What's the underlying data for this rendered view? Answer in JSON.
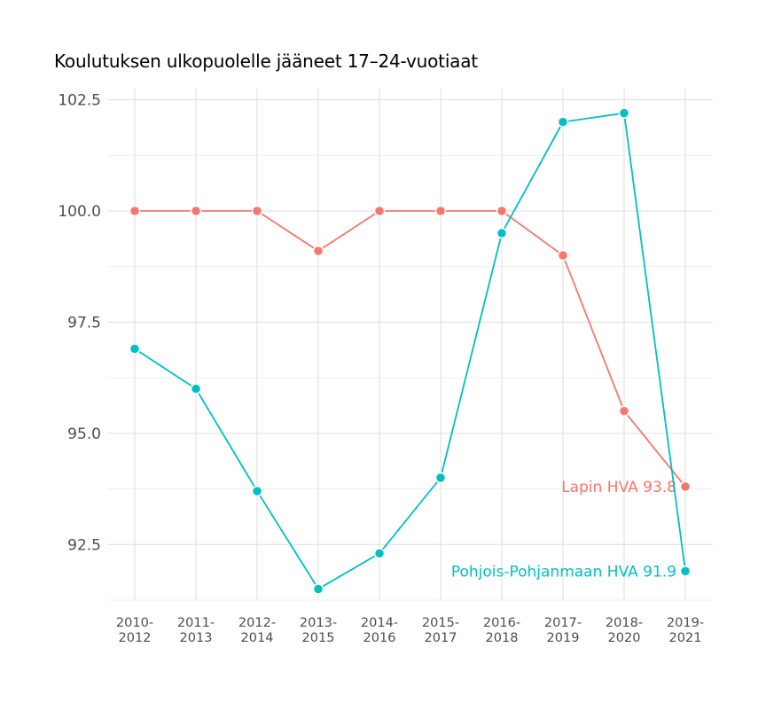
{
  "chart_data": {
    "type": "line",
    "title": "Koulutuksen ulkopuolelle jääneet 17–24-vuotiaat",
    "xlabel": "",
    "ylabel": "",
    "categories": [
      "2010-2012",
      "2011-2013",
      "2012-2014",
      "2013-2015",
      "2014-2016",
      "2015-2017",
      "2016-2018",
      "2017-2019",
      "2018-2020",
      "2019-2021"
    ],
    "ylim": [
      91.25,
      102.75
    ],
    "yticks": [
      "92.5",
      "95.0",
      "97.5",
      "100.0",
      "102.5"
    ],
    "grid": true,
    "legend": "none (direct end labels)",
    "series": [
      {
        "name": "Lapin HVA",
        "color": "#F8766D",
        "end_label": "Lapin HVA 93.8",
        "values": [
          100.0,
          100.0,
          100.0,
          99.1,
          100.0,
          100.0,
          100.0,
          99.0,
          95.5,
          93.8
        ]
      },
      {
        "name": "Pohjois-Pohjanmaan HVA",
        "color": "#00BFC4",
        "end_label": "Pohjois-Pohjanmaan HVA 91.9",
        "values": [
          96.9,
          96.0,
          93.7,
          91.5,
          92.3,
          94.0,
          99.5,
          102.0,
          102.2,
          91.9
        ]
      }
    ]
  }
}
